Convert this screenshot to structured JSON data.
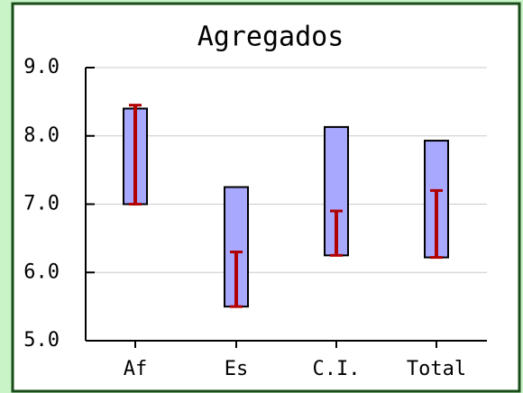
{
  "chart_data": {
    "type": "range",
    "title": "Agregados",
    "categories": [
      "Af",
      "Es",
      "C.I.",
      "Total"
    ],
    "series": [
      {
        "color": "#a8a8ff",
        "low": [
          7.0,
          5.5,
          6.25,
          6.22
        ],
        "high": [
          8.4,
          7.25,
          8.13,
          7.93
        ]
      },
      {
        "color": "#b00000",
        "low": [
          7.0,
          5.5,
          6.25,
          6.22
        ],
        "high": [
          8.45,
          6.3,
          6.9,
          7.2
        ]
      }
    ],
    "ylim": [
      5,
      9
    ],
    "yticks": [
      {
        "value": 5,
        "label": "5.0"
      },
      {
        "value": 6,
        "label": "6.0"
      },
      {
        "value": 7,
        "label": "7.0"
      },
      {
        "value": 8,
        "label": "8.0"
      },
      {
        "value": 9,
        "label": "9.0"
      }
    ],
    "grid": true
  }
}
